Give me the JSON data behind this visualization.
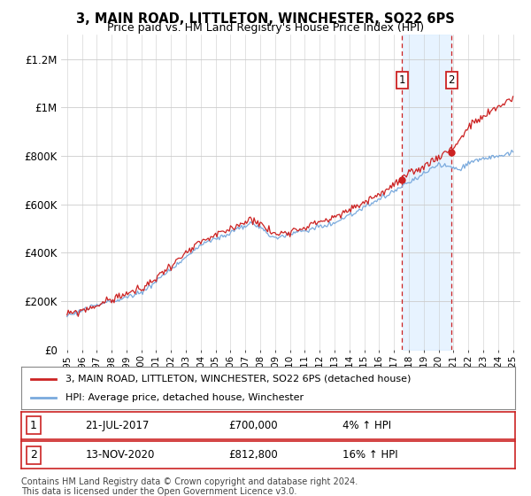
{
  "title": "3, MAIN ROAD, LITTLETON, WINCHESTER, SO22 6PS",
  "subtitle": "Price paid vs. HM Land Registry's House Price Index (HPI)",
  "ylim": [
    0,
    1300000
  ],
  "yticks": [
    0,
    200000,
    400000,
    600000,
    800000,
    1000000,
    1200000
  ],
  "ytick_labels": [
    "£0",
    "£200K",
    "£400K",
    "£600K",
    "£800K",
    "£1M",
    "£1.2M"
  ],
  "xtick_years": [
    1995,
    1996,
    1997,
    1998,
    1999,
    2000,
    2001,
    2002,
    2003,
    2004,
    2005,
    2006,
    2007,
    2008,
    2009,
    2010,
    2011,
    2012,
    2013,
    2014,
    2015,
    2016,
    2017,
    2018,
    2019,
    2020,
    2021,
    2022,
    2023,
    2024,
    2025
  ],
  "sale1_date": 2017.54,
  "sale1_price": 700000,
  "sale2_date": 2020.87,
  "sale2_price": 812800,
  "hpi_color": "#7aaadd",
  "sale_color": "#cc2222",
  "shade_color": "#ddeeff",
  "legend_line1": "3, MAIN ROAD, LITTLETON, WINCHESTER, SO22 6PS (detached house)",
  "legend_line2": "HPI: Average price, detached house, Winchester",
  "footnote": "Contains HM Land Registry data © Crown copyright and database right 2024.\nThis data is licensed under the Open Government Licence v3.0.",
  "title_fontsize": 10.5,
  "subtitle_fontsize": 9
}
